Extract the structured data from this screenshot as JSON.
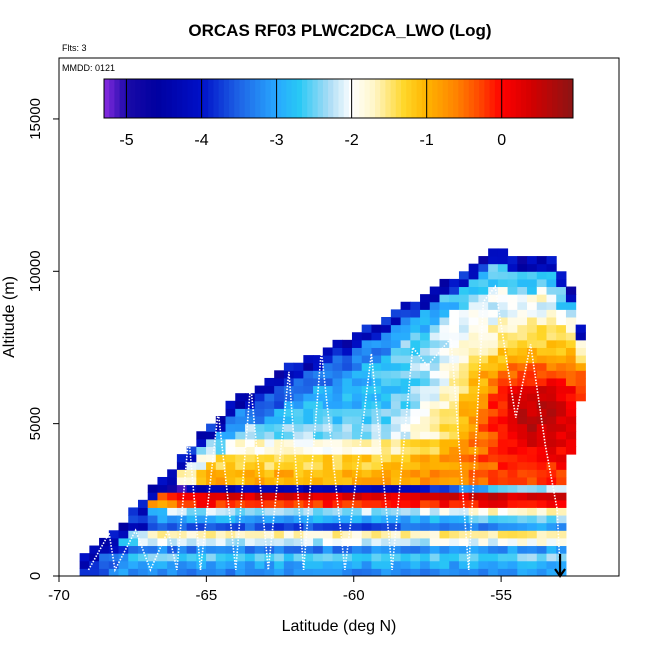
{
  "chart_data": {
    "type": "heatmap",
    "title": "ORCAS RF03 PLWC2DCA_LWO (Log)",
    "notes": [
      "Flts: 3",
      "MMDD: 0121"
    ],
    "xlabel": "Latitude (deg N)",
    "ylabel": "Altitude (m)",
    "xlim": [
      -70,
      -51
    ],
    "ylim": [
      0,
      17000
    ],
    "x_ticks": [
      -70,
      -65,
      -60,
      -55
    ],
    "x_tick_labels": [
      "-70",
      "-65",
      "-60",
      "-55"
    ],
    "y_ticks": [
      0,
      5000,
      10000,
      15000
    ],
    "y_tick_labels": [
      "0",
      "5000",
      "10000",
      "15000"
    ],
    "colorbar": {
      "min": -5.3,
      "max": 0.95,
      "ticks": [
        -5,
        -4,
        -3,
        -2,
        -1,
        0
      ],
      "tick_labels": [
        "-5",
        "-4",
        "-3",
        "-2",
        "-1",
        "0"
      ],
      "placement": "top-inside"
    },
    "colorscale": [
      [
        -5.3,
        "#8a2be2"
      ],
      [
        -5.0,
        "#1a0aa8"
      ],
      [
        -4.6,
        "#0000a0"
      ],
      [
        -4.0,
        "#0010c8"
      ],
      [
        -3.5,
        "#1e64e6"
      ],
      [
        -3.0,
        "#28a8ff"
      ],
      [
        -2.7,
        "#28c8f5"
      ],
      [
        -2.3,
        "#aadcf5"
      ],
      [
        -2.0,
        "#ffffff"
      ],
      [
        -1.7,
        "#fff6c8"
      ],
      [
        -1.3,
        "#ffd628"
      ],
      [
        -1.0,
        "#ffb400"
      ],
      [
        -0.6,
        "#ff8200"
      ],
      [
        -0.3,
        "#ff4a00"
      ],
      [
        0.0,
        "#ff0000"
      ],
      [
        0.4,
        "#d20000"
      ],
      [
        0.95,
        "#8c1414"
      ]
    ],
    "lat_range": [
      -69.3,
      -52.0
    ],
    "lat_step": 0.33,
    "alt_step": 250,
    "top_profile": {
      "lat": [
        -69.3,
        -68.0,
        -67.0,
        -66.0,
        -65.0,
        -64.0,
        -63.0,
        -62.0,
        -61.0,
        -60.0,
        -59.0,
        -58.0,
        -57.0,
        -56.0,
        -55.0,
        -54.7,
        -53.5,
        -52.5,
        -52.0
      ],
      "alt": [
        400,
        1400,
        2600,
        3600,
        4700,
        5700,
        6300,
        6900,
        7300,
        7800,
        8300,
        8900,
        9500,
        10000,
        10700,
        10300,
        10500,
        9300,
        6400
      ]
    },
    "right_edge": {
      "alt": [
        0,
        2000,
        3500,
        5000,
        6400,
        8000,
        10500
      ],
      "lat": [
        -53.0,
        -52.8,
        -52.7,
        -52.6,
        -52.0,
        -52.0,
        -52.5
      ]
    },
    "layers": [
      {
        "alt": 0,
        "v": -3.2
      },
      {
        "alt": 250,
        "v": -3.0
      },
      {
        "alt": 500,
        "v": -2.6
      },
      {
        "alt": 750,
        "v": -3.3
      },
      {
        "alt": 1000,
        "v": -2.2
      },
      {
        "alt": 1250,
        "v": -1.7
      },
      {
        "alt": 1500,
        "v": -3.6
      },
      {
        "alt": 1750,
        "v": -3.0
      },
      {
        "alt": 2000,
        "v": -2.3
      },
      {
        "alt": 2250,
        "v": -0.1
      },
      {
        "alt": 2500,
        "v": 0.3
      },
      {
        "alt": 2750,
        "v": -4.3
      },
      {
        "alt": 3000,
        "v": -1.0
      },
      {
        "alt": 3500,
        "v": -1.3
      },
      {
        "alt": 4000,
        "v": -1.8
      },
      {
        "alt": 4500,
        "v": -2.4
      },
      {
        "alt": 5000,
        "v": -2.7
      },
      {
        "alt": 5500,
        "v": -2.9
      },
      {
        "alt": 6000,
        "v": -3.0
      },
      {
        "alt": 6500,
        "v": -2.8
      },
      {
        "alt": 7000,
        "v": -2.8
      },
      {
        "alt": 7500,
        "v": -2.7
      },
      {
        "alt": 8000,
        "v": -2.5
      },
      {
        "alt": 9000,
        "v": -2.2
      },
      {
        "alt": 10000,
        "v": -2.0
      },
      {
        "alt": 11000,
        "v": -2.0
      }
    ],
    "red_core": {
      "lat_center": -53.8,
      "alt_center": 5200,
      "lat_width": 3.2,
      "alt_width": 2600,
      "peak": 0.6
    },
    "flight_track": {
      "lat": [
        -69.0,
        -68.3,
        -68.1,
        -67.4,
        -66.9,
        -66.3,
        -66.0,
        -65.6,
        -65.2,
        -64.6,
        -64.0,
        -63.5,
        -62.9,
        -62.2,
        -61.7,
        -61.1,
        -60.3,
        -59.4,
        -58.7,
        -58.0,
        -57.5,
        -56.7,
        -56.1,
        -55.6,
        -55.2,
        -54.8,
        -54.5,
        -54.0,
        -53.5,
        -53.1,
        -53.0
      ],
      "alt": [
        200,
        1400,
        200,
        1500,
        200,
        1500,
        200,
        4600,
        200,
        5400,
        200,
        6300,
        200,
        6700,
        200,
        7400,
        200,
        7300,
        200,
        7500,
        6900,
        7800,
        200,
        9000,
        9500,
        7000,
        5200,
        7600,
        4300,
        2200,
        200
      ]
    },
    "end_marker": {
      "lat": -53.0,
      "alt": 0
    }
  }
}
